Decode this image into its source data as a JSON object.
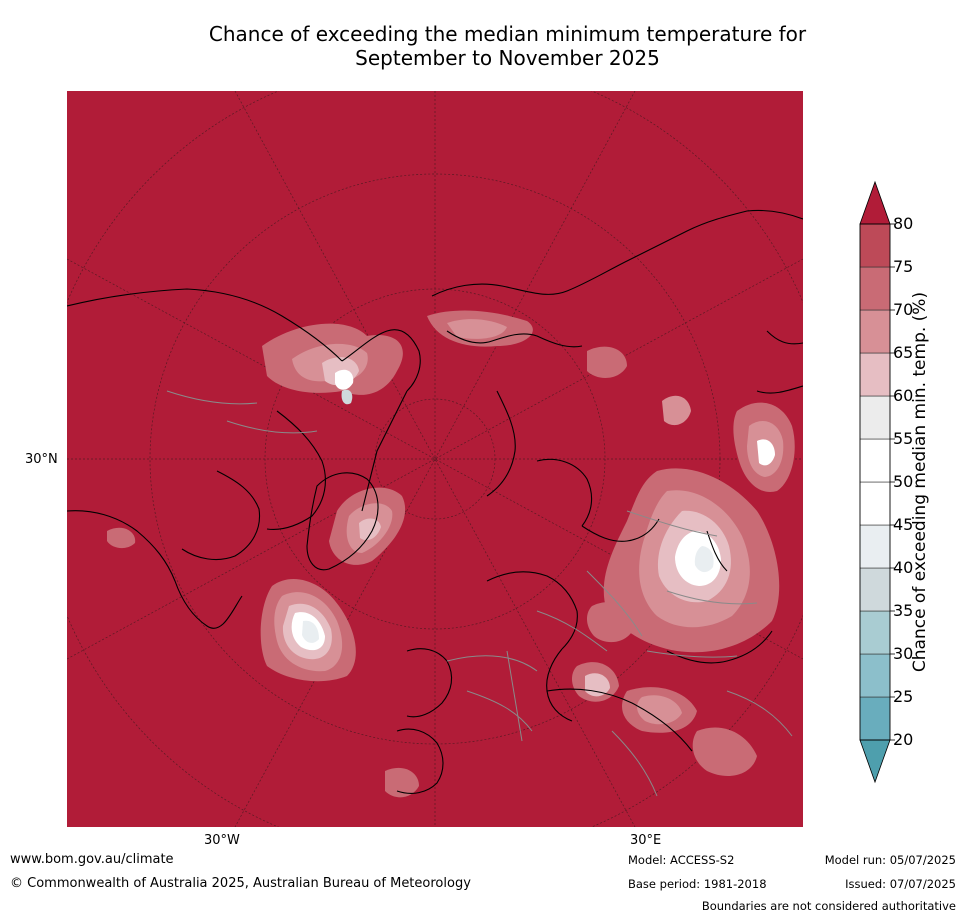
{
  "title_line1": "Chance of exceeding the median minimum temperature for",
  "title_line2": "September to November 2025",
  "lat_labels": [
    "30°N"
  ],
  "lon_labels": [
    "30°W",
    "30°E"
  ],
  "colorbar": {
    "label": "Chance of exceeding median min. temp. (%)",
    "ticks": [
      "20",
      "25",
      "30",
      "35",
      "40",
      "45",
      "50",
      "55",
      "60",
      "65",
      "70",
      "75",
      "80"
    ],
    "colors": [
      "#69adbd",
      "#8cbfcb",
      "#a9ccd2",
      "#cfd9dc",
      "#e9eef1",
      "#ffffff",
      "#ffffff",
      "#ececec",
      "#e6bec3",
      "#d79096",
      "#c96b75",
      "#bd4a58"
    ],
    "under_color": "#4e9fad",
    "over_color": "#b11c38"
  },
  "footer": {
    "website": "www.bom.gov.au/climate",
    "copyright": "© Commonwealth of Australia 2025, Australian Bureau of Meteorology",
    "model": "Model: ACCESS-S2",
    "base_period": "Base period: 1981-2018",
    "model_run": "Model run: 05/07/2025",
    "issued": "Issued: 07/07/2025",
    "boundaries": "Boundaries are not considered authoritative"
  }
}
